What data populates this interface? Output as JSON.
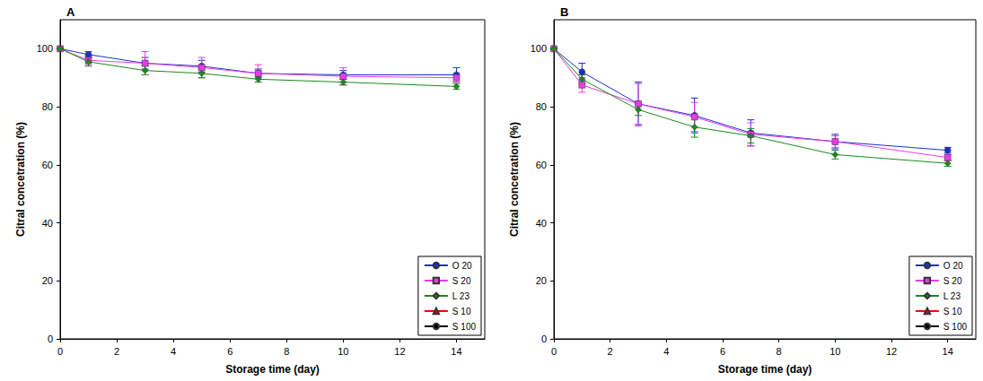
{
  "chart_data": [
    {
      "type": "line",
      "title": "A",
      "x_label": "Storage time (day)",
      "y_label": "Citral concetration (%)",
      "x": [
        0,
        1,
        3,
        5,
        7,
        10,
        14
      ],
      "xlim": [
        0,
        15
      ],
      "xticks": [
        0,
        2,
        4,
        6,
        8,
        10,
        12,
        14
      ],
      "ylim": [
        0,
        110
      ],
      "yticks": [
        0,
        20,
        40,
        60,
        80,
        100
      ],
      "grid": false,
      "legend": "lower right",
      "series": [
        {
          "name": "O 20",
          "color": "#1c2fcc",
          "marker": "circle",
          "values": [
            100,
            98,
            95,
            94,
            91.5,
            91,
            91
          ],
          "errors": [
            0,
            1,
            2,
            2,
            1.5,
            1.5,
            2.5
          ]
        },
        {
          "name": "S 20",
          "color": "#e83ce8",
          "marker": "square",
          "values": [
            100,
            96,
            95,
            93.5,
            91.5,
            90.5,
            90
          ],
          "errors": [
            0,
            1.5,
            4,
            3.5,
            3,
            3,
            1.5
          ]
        },
        {
          "name": "L 23",
          "color": "#1a8a1a",
          "marker": "diamond",
          "values": [
            100,
            95.5,
            92.5,
            91.5,
            89.5,
            88.5,
            87
          ],
          "errors": [
            0,
            1.5,
            1.5,
            1.5,
            1,
            1,
            1
          ]
        },
        {
          "name": "S 10",
          "color": "#ff0000",
          "marker": "triangle",
          "values": [
            null,
            null,
            null,
            null,
            null,
            null,
            null
          ],
          "errors": [
            null,
            null,
            null,
            null,
            null,
            null,
            null
          ]
        },
        {
          "name": "S 100",
          "color": "#000000",
          "marker": "circle",
          "values": [
            null,
            null,
            null,
            null,
            null,
            null,
            null
          ],
          "errors": [
            null,
            null,
            null,
            null,
            null,
            null,
            null
          ]
        }
      ]
    },
    {
      "type": "line",
      "title": "B",
      "x_label": "Storage time (day)",
      "y_label": "Citral concetration (%)",
      "x": [
        0,
        1,
        3,
        5,
        7,
        10,
        14
      ],
      "xlim": [
        0,
        15
      ],
      "xticks": [
        0,
        2,
        4,
        6,
        8,
        10,
        12,
        14
      ],
      "ylim": [
        0,
        110
      ],
      "yticks": [
        0,
        20,
        40,
        60,
        80,
        100
      ],
      "grid": false,
      "legend": "lower right",
      "series": [
        {
          "name": "O 20",
          "color": "#1c2fcc",
          "marker": "circle",
          "values": [
            100,
            92,
            81,
            77,
            71,
            68,
            65
          ],
          "errors": [
            0,
            3,
            7.5,
            6,
            4.5,
            2.5,
            1
          ]
        },
        {
          "name": "S 20",
          "color": "#e83ce8",
          "marker": "square",
          "values": [
            100,
            87.5,
            81,
            76.5,
            70.5,
            68,
            62.5
          ],
          "errors": [
            0,
            2.5,
            7,
            5,
            4,
            2,
            1
          ]
        },
        {
          "name": "L 23",
          "color": "#1a8a1a",
          "marker": "diamond",
          "values": [
            100,
            89.5,
            79,
            73,
            70,
            63.5,
            60.5
          ],
          "errors": [
            0,
            1.5,
            2,
            3.5,
            2.5,
            1.5,
            1
          ]
        },
        {
          "name": "S 10",
          "color": "#ff0000",
          "marker": "triangle",
          "values": [
            null,
            null,
            null,
            null,
            null,
            null,
            null
          ],
          "errors": [
            null,
            null,
            null,
            null,
            null,
            null,
            null
          ]
        },
        {
          "name": "S 100",
          "color": "#000000",
          "marker": "circle",
          "values": [
            null,
            null,
            null,
            null,
            null,
            null,
            null
          ],
          "errors": [
            null,
            null,
            null,
            null,
            null,
            null,
            null
          ]
        }
      ]
    }
  ]
}
